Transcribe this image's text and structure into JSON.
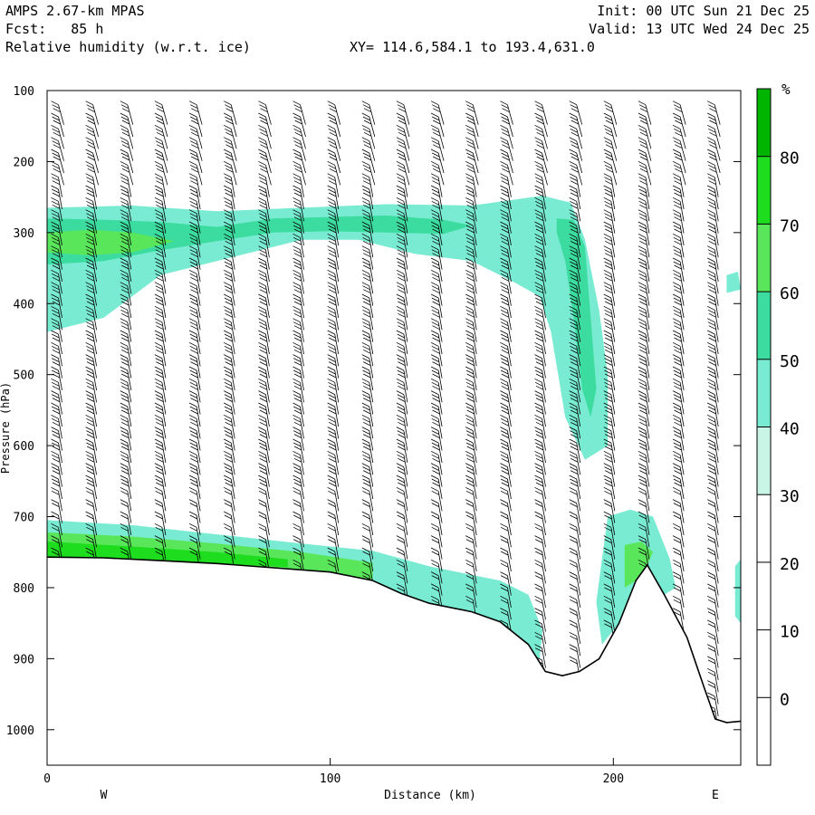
{
  "header": {
    "model": "AMPS 2.67-km MPAS",
    "fcst": "Fcst:   85 h",
    "field": "Relative humidity (w.r.t. ice)",
    "xy": "XY= 114.6,584.1 to 193.4,631.0",
    "init": "Init: 00 UTC Sun 21 Dec 25",
    "valid": "Valid: 13 UTC Wed 24 Dec 25"
  },
  "chart_data": {
    "type": "heatmap",
    "title": "Relative humidity (w.r.t. ice)",
    "xlabel": "Distance (km)",
    "ylabel": "Pressure (hPa)",
    "xlim": [
      0,
      245
    ],
    "ylim": [
      1050,
      100
    ],
    "x_ticks": [
      0,
      100,
      200
    ],
    "y_ticks": [
      100,
      200,
      300,
      400,
      500,
      600,
      700,
      800,
      900,
      1000
    ],
    "x_end_labels": {
      "left": "W",
      "right": "E"
    },
    "colorbar": {
      "unit": "%",
      "levels": [
        0,
        10,
        20,
        30,
        40,
        50,
        60,
        70,
        80
      ],
      "colors": [
        "#ffffff",
        "#ffffff",
        "#ffffff",
        "#ffffff",
        "#c8f5e6",
        "#78ebd2",
        "#3cdca0",
        "#5ae65a",
        "#1edc1e",
        "#00b400"
      ]
    },
    "terrain": [
      [
        0,
        757
      ],
      [
        20,
        758
      ],
      [
        40,
        762
      ],
      [
        60,
        766
      ],
      [
        80,
        772
      ],
      [
        100,
        778
      ],
      [
        115,
        790
      ],
      [
        125,
        808
      ],
      [
        135,
        822
      ],
      [
        150,
        834
      ],
      [
        160,
        848
      ],
      [
        170,
        880
      ],
      [
        176,
        918
      ],
      [
        182,
        924
      ],
      [
        188,
        918
      ],
      [
        195,
        900
      ],
      [
        202,
        850
      ],
      [
        208,
        790
      ],
      [
        212,
        768
      ],
      [
        218,
        810
      ],
      [
        226,
        870
      ],
      [
        232,
        940
      ],
      [
        236,
        985
      ],
      [
        240,
        990
      ],
      [
        245,
        988
      ]
    ],
    "humidity_regions": [
      {
        "name": "upper-moist-layer",
        "rh_min": 40,
        "points": [
          [
            0,
            265
          ],
          [
            30,
            262
          ],
          [
            60,
            270
          ],
          [
            90,
            265
          ],
          [
            120,
            260
          ],
          [
            150,
            262
          ],
          [
            175,
            248
          ],
          [
            185,
            258
          ],
          [
            190,
            310
          ],
          [
            195,
            410
          ],
          [
            198,
            500
          ],
          [
            198,
            600
          ],
          [
            190,
            620
          ],
          [
            183,
            560
          ],
          [
            178,
            440
          ],
          [
            174,
            390
          ],
          [
            165,
            370
          ],
          [
            150,
            340
          ],
          [
            130,
            330
          ],
          [
            110,
            310
          ],
          [
            90,
            310
          ],
          [
            70,
            330
          ],
          [
            40,
            360
          ],
          [
            20,
            420
          ],
          [
            0,
            440
          ]
        ]
      },
      {
        "name": "upper-moist-core",
        "rh_min": 50,
        "points": [
          [
            0,
            280
          ],
          [
            20,
            282
          ],
          [
            40,
            285
          ],
          [
            60,
            292
          ],
          [
            80,
            280
          ],
          [
            100,
            278
          ],
          [
            120,
            276
          ],
          [
            140,
            282
          ],
          [
            150,
            290
          ],
          [
            140,
            302
          ],
          [
            120,
            300
          ],
          [
            100,
            298
          ],
          [
            80,
            300
          ],
          [
            60,
            312
          ],
          [
            40,
            325
          ],
          [
            20,
            340
          ],
          [
            0,
            345
          ]
        ]
      },
      {
        "name": "upper-moist-peak",
        "rh_min": 60,
        "points": [
          [
            0,
            300
          ],
          [
            15,
            296
          ],
          [
            30,
            300
          ],
          [
            45,
            312
          ],
          [
            30,
            328
          ],
          [
            15,
            332
          ],
          [
            0,
            328
          ]
        ]
      },
      {
        "name": "column-moist-tongue",
        "rh_min": 50,
        "points": [
          [
            180,
            280
          ],
          [
            186,
            282
          ],
          [
            190,
            320
          ],
          [
            192,
            420
          ],
          [
            194,
            520
          ],
          [
            192,
            560
          ],
          [
            189,
            520
          ],
          [
            186,
            420
          ],
          [
            183,
            340
          ],
          [
            180,
            300
          ]
        ]
      },
      {
        "name": "surface-moist-band",
        "rh_min": 40,
        "points": [
          [
            0,
            705
          ],
          [
            30,
            712
          ],
          [
            60,
            725
          ],
          [
            90,
            738
          ],
          [
            115,
            748
          ],
          [
            135,
            770
          ],
          [
            160,
            790
          ],
          [
            170,
            810
          ],
          [
            175,
            860
          ],
          [
            174,
            900
          ],
          [
            168,
            890
          ],
          [
            160,
            848
          ],
          [
            150,
            834
          ],
          [
            135,
            822
          ],
          [
            125,
            808
          ],
          [
            115,
            790
          ],
          [
            100,
            778
          ],
          [
            80,
            772
          ],
          [
            60,
            766
          ],
          [
            40,
            762
          ],
          [
            20,
            758
          ],
          [
            0,
            757
          ]
        ]
      },
      {
        "name": "surface-green-band",
        "rh_min": 60,
        "points": [
          [
            0,
            722
          ],
          [
            30,
            728
          ],
          [
            60,
            738
          ],
          [
            90,
            750
          ],
          [
            115,
            765
          ],
          [
            115,
            790
          ],
          [
            100,
            778
          ],
          [
            80,
            772
          ],
          [
            60,
            766
          ],
          [
            40,
            762
          ],
          [
            20,
            758
          ],
          [
            0,
            757
          ]
        ]
      },
      {
        "name": "surface-peak",
        "rh_min": 70,
        "points": [
          [
            0,
            735
          ],
          [
            30,
            742
          ],
          [
            60,
            750
          ],
          [
            85,
            760
          ],
          [
            85,
            771
          ],
          [
            60,
            766
          ],
          [
            40,
            762
          ],
          [
            20,
            758
          ],
          [
            0,
            757
          ]
        ]
      },
      {
        "name": "ridge-moist",
        "rh_min": 40,
        "points": [
          [
            198,
            700
          ],
          [
            206,
            690
          ],
          [
            214,
            700
          ],
          [
            220,
            760
          ],
          [
            222,
            800
          ],
          [
            218,
            810
          ],
          [
            212,
            768
          ],
          [
            208,
            790
          ],
          [
            202,
            850
          ],
          [
            196,
            880
          ],
          [
            194,
            820
          ]
        ]
      },
      {
        "name": "ridge-peak",
        "rh_min": 60,
        "points": [
          [
            204,
            740
          ],
          [
            210,
            735
          ],
          [
            214,
            750
          ],
          [
            212,
            768
          ],
          [
            208,
            790
          ],
          [
            204,
            800
          ]
        ]
      },
      {
        "name": "east-patch-upper",
        "rh_min": 40,
        "points": [
          [
            240,
            360
          ],
          [
            244,
            355
          ],
          [
            245,
            380
          ],
          [
            240,
            385
          ]
        ]
      },
      {
        "name": "east-patch-lower",
        "rh_min": 40,
        "points": [
          [
            243,
            770
          ],
          [
            245,
            760
          ],
          [
            245,
            850
          ],
          [
            243,
            840
          ]
        ]
      }
    ]
  }
}
